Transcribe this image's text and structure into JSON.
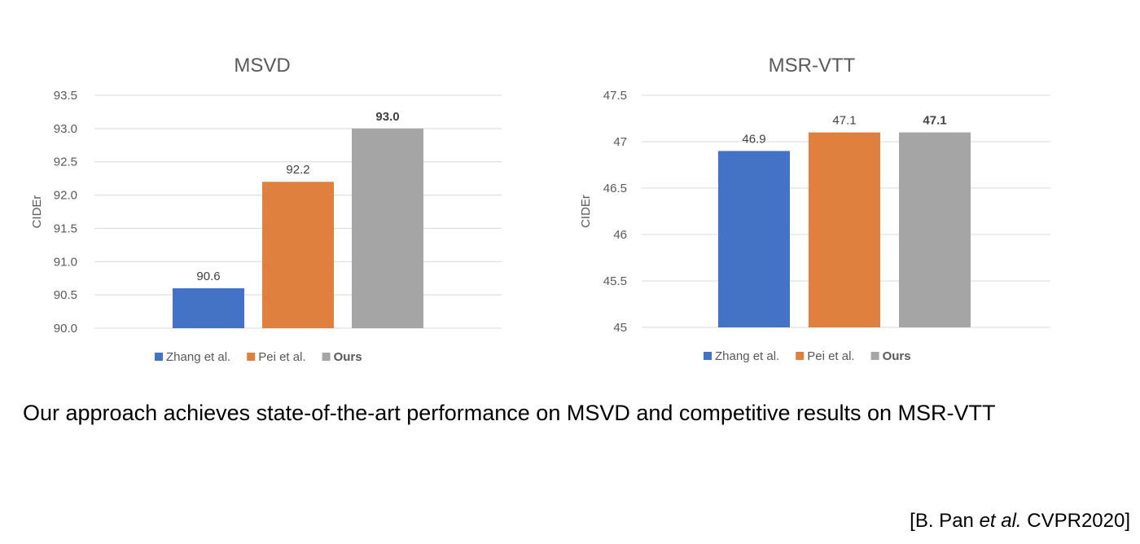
{
  "chart_data": [
    {
      "type": "bar",
      "title": "MSVD",
      "ylabel": "CIDEr",
      "xlabel": "",
      "ylim": [
        90.0,
        93.5
      ],
      "ytick_step": 0.5,
      "ytick_decimals": 1,
      "categories": [
        "Zhang et al.",
        "Pei et al.",
        "Ours"
      ],
      "values": [
        90.6,
        92.2,
        93.0
      ],
      "value_labels": [
        "90.6",
        "92.2",
        "93.0"
      ],
      "bold_category": "Ours",
      "colors": [
        "#4472c4",
        "#e0803f",
        "#a5a5a5"
      ],
      "grid": true,
      "legend": "bottom"
    },
    {
      "type": "bar",
      "title": "MSR-VTT",
      "ylabel": "CIDEr",
      "xlabel": "",
      "ylim": [
        45,
        47.5
      ],
      "ytick_step": 0.5,
      "ytick_decimals": -1,
      "categories": [
        "Zhang et al.",
        "Pei et al.",
        "Ours"
      ],
      "values": [
        46.9,
        47.1,
        47.1
      ],
      "value_labels": [
        "46.9",
        "47.1",
        "47.1"
      ],
      "bold_category": "Ours",
      "colors": [
        "#4472c4",
        "#e0803f",
        "#a5a5a5"
      ],
      "grid": true,
      "legend": "bottom"
    }
  ],
  "caption": "Our approach achieves state-of-the-art performance on MSVD and competitive results on MSR-VTT",
  "citation": {
    "prefix": "[B. Pan ",
    "italic": "et al.",
    "suffix": " CVPR2020]"
  }
}
